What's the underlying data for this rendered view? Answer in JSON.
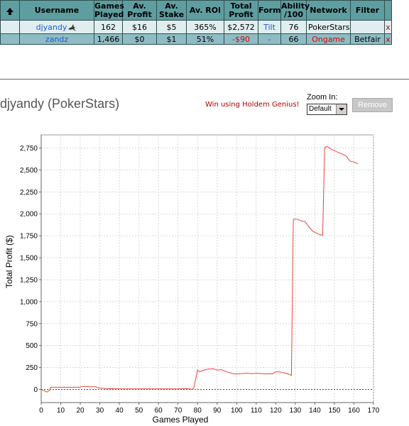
{
  "table": {
    "headers": {
      "username": "Username",
      "games_played": [
        "Games",
        "Played"
      ],
      "av_profit": [
        "Av.",
        "Profit"
      ],
      "av_stake": [
        "Av.",
        "Stake"
      ],
      "av_roi": "Av. ROI",
      "total_profit": [
        "Total",
        "Profit"
      ],
      "form": "Form",
      "ability": [
        "Ability",
        "/100"
      ],
      "network": "Network",
      "filter": "Filter"
    },
    "rows": [
      {
        "username": "djyandy",
        "games_played": "162",
        "av_profit": "$16",
        "av_stake": "$5",
        "av_roi": "365%",
        "total_profit": "$2,572",
        "form": "Tilt",
        "ability": "76",
        "network": "PokerStars",
        "filter": "",
        "remove": "x"
      },
      {
        "username": "zandz",
        "games_played": "1,466",
        "av_profit": "$0",
        "av_stake": "$1",
        "av_roi": "51%",
        "total_profit": "-$90",
        "form": "-",
        "ability": "66",
        "network": "Ongame",
        "filter": "Betfair",
        "remove": "x"
      }
    ]
  },
  "player": {
    "title": "djyandy (PokerStars)",
    "promo": "Win using Holdem Genius!"
  },
  "zoom": {
    "label": "Zoom In:",
    "value": "Default"
  },
  "remove_button": "Remove",
  "icons": {
    "sort": "arrow-up-icon",
    "player": "shark-icon"
  },
  "colors": {
    "header_bg": "#5f9ea0",
    "row1_bg": "#e0eef0",
    "row2_bg": "#8fbcc4",
    "line": "#e8433a",
    "zero_line": "#3333cc"
  },
  "chart_data": {
    "type": "line",
    "xlabel": "Games Played",
    "ylabel": "Total Profit ($)",
    "xlim": [
      0,
      170
    ],
    "ylim": [
      -150,
      2900
    ],
    "xticks": [
      0,
      10,
      20,
      30,
      40,
      50,
      60,
      70,
      80,
      90,
      100,
      110,
      120,
      130,
      140,
      150,
      160,
      170
    ],
    "yticks": [
      0,
      250,
      500,
      750,
      1000,
      1250,
      1500,
      1750,
      2000,
      2250,
      2500,
      2750
    ],
    "ytick_labels": [
      "0",
      "250",
      "500",
      "750",
      "1,000",
      "1,250",
      "1,500",
      "1,750",
      "2,000",
      "2,250",
      "2,500",
      "2,750"
    ],
    "grid": true,
    "series": [
      {
        "x": [
          0,
          1,
          2,
          3,
          4,
          5,
          10,
          15,
          20,
          21,
          25,
          28,
          29,
          31,
          33,
          40,
          50,
          60,
          70,
          74,
          76,
          77,
          78,
          80,
          81,
          82,
          85,
          88,
          90,
          92,
          95,
          98,
          100,
          105,
          108,
          110,
          115,
          117,
          118,
          120,
          122,
          125,
          127,
          128,
          129,
          131,
          133,
          135,
          137,
          139,
          141,
          142,
          143,
          144,
          145,
          146,
          147,
          148,
          150,
          152,
          154,
          156,
          158,
          160,
          162
        ],
        "y": [
          0,
          -10,
          -20,
          -30,
          -15,
          25,
          25,
          25,
          25,
          35,
          30,
          30,
          20,
          15,
          10,
          5,
          5,
          5,
          5,
          10,
          5,
          0,
          10,
          220,
          200,
          210,
          230,
          235,
          220,
          225,
          200,
          180,
          175,
          185,
          180,
          185,
          175,
          180,
          175,
          200,
          200,
          185,
          170,
          160,
          1940,
          1940,
          1920,
          1915,
          1850,
          1800,
          1780,
          1770,
          1760,
          1755,
          2750,
          2770,
          2760,
          2740,
          2720,
          2700,
          2680,
          2660,
          2600,
          2590,
          2572
        ]
      }
    ]
  }
}
